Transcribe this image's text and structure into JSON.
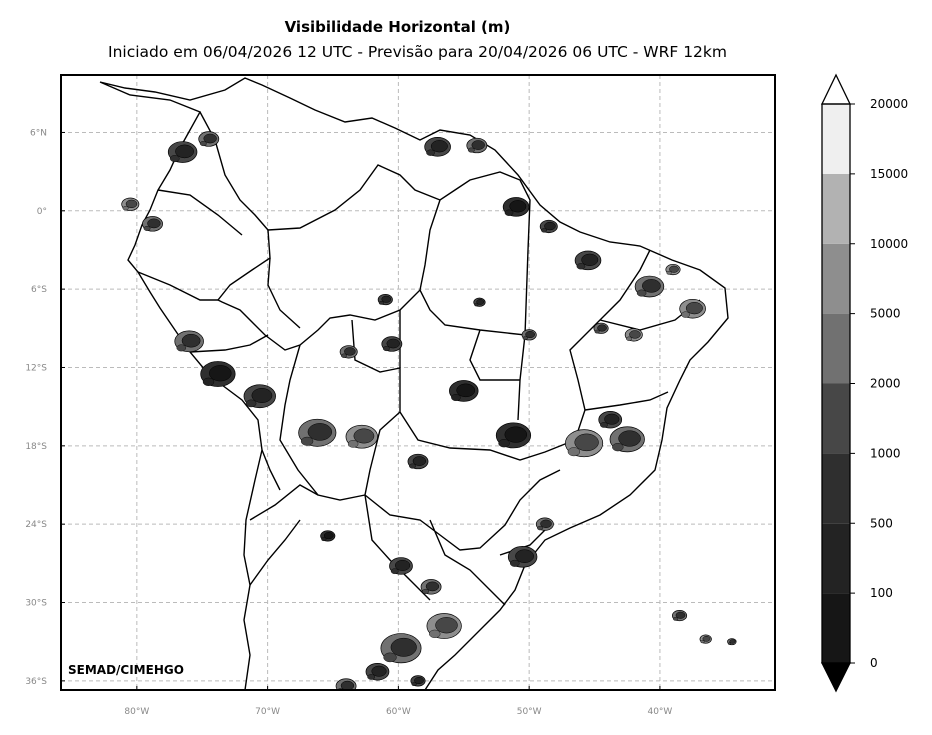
{
  "title": "Visibilidade Horizontal (m)",
  "subtitle": "Iniciado em 06/04/2026 12 UTC - Previsão para 20/04/2026 06 UTC - WRF 12km",
  "credit": "SEMAD/CIMEHGO",
  "map": {
    "lon_range": [
      -85.8,
      -31.2
    ],
    "lat_range": [
      -36.7,
      10.4
    ],
    "lat_ticks": [
      {
        "value": 6,
        "label": "6°N"
      },
      {
        "value": 0,
        "label": "0°"
      },
      {
        "value": -6,
        "label": "6°S"
      },
      {
        "value": -12,
        "label": "12°S"
      },
      {
        "value": -18,
        "label": "18°S"
      },
      {
        "value": -24,
        "label": "24°S"
      },
      {
        "value": -30,
        "label": "30°S"
      },
      {
        "value": -36,
        "label": "36°S"
      }
    ],
    "lon_ticks": [
      {
        "value": -80,
        "label": "80°W"
      },
      {
        "value": -70,
        "label": "70°W"
      },
      {
        "value": -60,
        "label": "60°W"
      },
      {
        "value": -50,
        "label": "50°W"
      },
      {
        "value": -40,
        "label": "40°W"
      }
    ],
    "grid": true,
    "grid_style": "dashed",
    "low_visibility_areas": [
      {
        "lon": -51.0,
        "lat": 0.3,
        "r": 0.9,
        "level": 0
      },
      {
        "lon": -48.5,
        "lat": -1.2,
        "r": 0.6,
        "level": 1
      },
      {
        "lon": -55.0,
        "lat": -13.8,
        "r": 1.0,
        "level": 0
      },
      {
        "lon": -51.2,
        "lat": -17.2,
        "r": 1.2,
        "level": 0
      },
      {
        "lon": -45.8,
        "lat": -17.8,
        "r": 1.3,
        "level": 3
      },
      {
        "lon": -42.5,
        "lat": -17.5,
        "r": 1.2,
        "level": 2
      },
      {
        "lon": -43.8,
        "lat": -16.0,
        "r": 0.8,
        "level": 1
      },
      {
        "lon": -40.8,
        "lat": -5.8,
        "r": 1.0,
        "level": 2
      },
      {
        "lon": -37.5,
        "lat": -7.5,
        "r": 0.9,
        "level": 3
      },
      {
        "lon": -45.5,
        "lat": -3.8,
        "r": 0.9,
        "level": 1
      },
      {
        "lon": -58.5,
        "lat": -19.2,
        "r": 0.7,
        "level": 1
      },
      {
        "lon": -62.8,
        "lat": -17.3,
        "r": 1.1,
        "level": 3
      },
      {
        "lon": -66.2,
        "lat": -17.0,
        "r": 1.3,
        "level": 2
      },
      {
        "lon": -70.6,
        "lat": -14.2,
        "r": 1.1,
        "level": 1
      },
      {
        "lon": -73.8,
        "lat": -12.5,
        "r": 1.2,
        "level": 0
      },
      {
        "lon": -76.0,
        "lat": -10.0,
        "r": 1.0,
        "level": 2
      },
      {
        "lon": -78.8,
        "lat": -1.0,
        "r": 0.7,
        "level": 2
      },
      {
        "lon": -80.5,
        "lat": 0.5,
        "r": 0.6,
        "level": 3
      },
      {
        "lon": -76.5,
        "lat": 4.5,
        "r": 1.0,
        "level": 1
      },
      {
        "lon": -74.5,
        "lat": 5.5,
        "r": 0.7,
        "level": 2
      },
      {
        "lon": -57.0,
        "lat": 4.9,
        "r": 0.9,
        "level": 1
      },
      {
        "lon": -54.0,
        "lat": 5.0,
        "r": 0.7,
        "level": 2
      },
      {
        "lon": -60.5,
        "lat": -10.2,
        "r": 0.7,
        "level": 1
      },
      {
        "lon": -63.8,
        "lat": -10.8,
        "r": 0.6,
        "level": 2
      },
      {
        "lon": -65.4,
        "lat": -24.9,
        "r": 0.5,
        "level": 0
      },
      {
        "lon": -59.8,
        "lat": -27.2,
        "r": 0.8,
        "level": 1
      },
      {
        "lon": -57.5,
        "lat": -28.8,
        "r": 0.7,
        "level": 2
      },
      {
        "lon": -50.5,
        "lat": -26.5,
        "r": 1.0,
        "level": 1
      },
      {
        "lon": -48.8,
        "lat": -24.0,
        "r": 0.6,
        "level": 2
      },
      {
        "lon": -59.8,
        "lat": -33.5,
        "r": 1.4,
        "level": 2
      },
      {
        "lon": -56.5,
        "lat": -31.8,
        "r": 1.2,
        "level": 3
      },
      {
        "lon": -61.6,
        "lat": -35.3,
        "r": 0.8,
        "level": 1
      },
      {
        "lon": -64.0,
        "lat": -36.4,
        "r": 0.7,
        "level": 2
      },
      {
        "lon": -58.5,
        "lat": -36.0,
        "r": 0.5,
        "level": 1
      },
      {
        "lon": -38.5,
        "lat": -31.0,
        "r": 0.5,
        "level": 2
      },
      {
        "lon": -36.5,
        "lat": -32.8,
        "r": 0.4,
        "level": 3
      },
      {
        "lon": -34.5,
        "lat": -33.0,
        "r": 0.3,
        "level": 2
      },
      {
        "lon": -61.0,
        "lat": -6.8,
        "r": 0.5,
        "level": 1
      },
      {
        "lon": -53.8,
        "lat": -7.0,
        "r": 0.4,
        "level": 1
      },
      {
        "lon": -50.0,
        "lat": -9.5,
        "r": 0.5,
        "level": 2
      },
      {
        "lon": -44.5,
        "lat": -9.0,
        "r": 0.5,
        "level": 2
      },
      {
        "lon": -42.0,
        "lat": -9.5,
        "r": 0.6,
        "level": 3
      },
      {
        "lon": -39.0,
        "lat": -4.5,
        "r": 0.5,
        "level": 3
      }
    ]
  },
  "colorbar": {
    "levels": [
      "0",
      "100",
      "500",
      "1000",
      "2000",
      "5000",
      "10000",
      "15000",
      "20000"
    ],
    "colors": [
      "#161616",
      "#232323",
      "#2f2f2f",
      "#474747",
      "#717171",
      "#8e8e8e",
      "#b2b2b2",
      "#efefef"
    ],
    "extend": "both"
  }
}
